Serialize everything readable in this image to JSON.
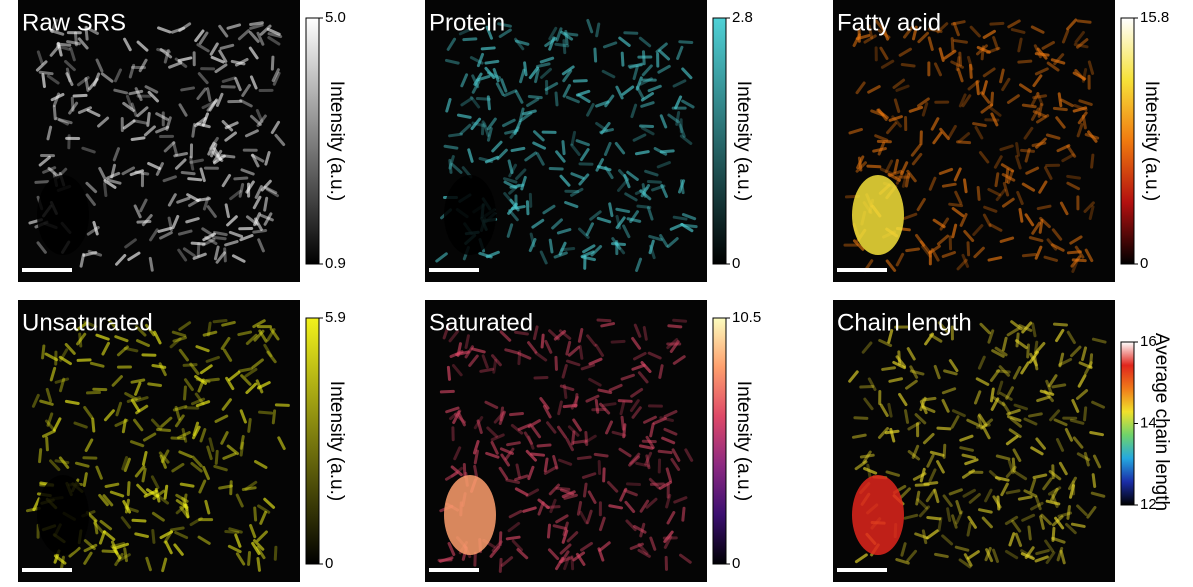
{
  "panels": [
    {
      "title": "Raw SRS",
      "colorbar": {
        "label": "Intensity (a.u.)",
        "ticks": [
          {
            "value": 0.9,
            "label": "0.9"
          },
          {
            "value": 5,
            "label": "5.0"
          }
        ],
        "colors": [
          "#000000",
          "#ffffff"
        ]
      }
    },
    {
      "title": "Protein",
      "colorbar": {
        "label": "Intensity (a.u.)",
        "ticks": [
          0,
          2.8
        ],
        "colors": [
          "#000000",
          "#4fd1d6"
        ]
      }
    },
    {
      "title": "Fatty acid",
      "colorbar": {
        "label": "Intensity (a.u.)",
        "ticks": [
          0,
          15.8
        ],
        "colors": [
          "#000000",
          "#b31010",
          "#f07a10",
          "#f6e23a",
          "#ffffff"
        ]
      }
    },
    {
      "title": "Unsaturated",
      "colorbar": {
        "label": "Intensity (a.u.)",
        "ticks": [
          0,
          5.9
        ],
        "colors": [
          "#000000",
          "#f2f21c"
        ]
      }
    },
    {
      "title": "Saturated",
      "colorbar": {
        "label": "Intensity (a.u.)",
        "ticks": [
          0,
          10.5
        ],
        "colors": [
          "#000004",
          "#3b0f70",
          "#8c2981",
          "#de4968",
          "#fe9f6d",
          "#fcfdbf"
        ]
      }
    },
    {
      "title": "Chain length",
      "colorbar": {
        "label": "Average chain length",
        "ticks": [
          12,
          14,
          16
        ],
        "colors": [
          "#000000",
          "#1b2ea8",
          "#24a8e0",
          "#6fd36b",
          "#f1e12c",
          "#f07a1a",
          "#e0261c",
          "#ffffff"
        ]
      }
    }
  ]
}
